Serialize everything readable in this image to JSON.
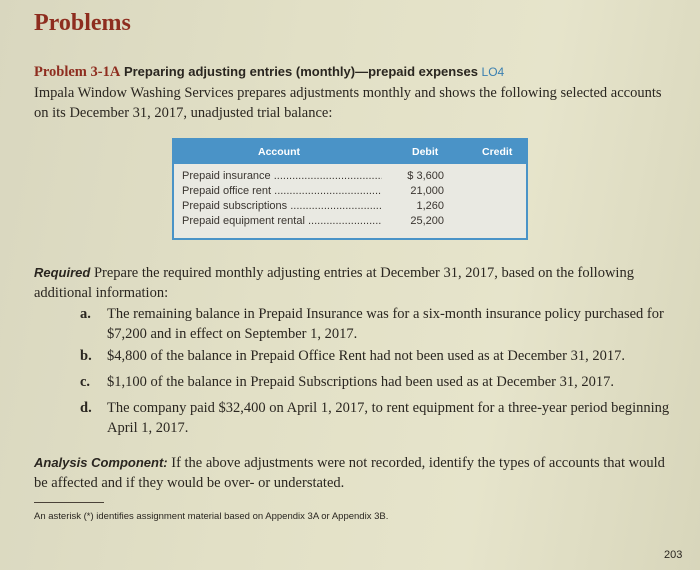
{
  "section_title": "Problems",
  "problem": {
    "number": "Problem 3-1A",
    "title": "Preparing adjusting entries (monthly)—prepaid expenses",
    "lo": "LO4"
  },
  "intro": "Impala Window Washing Services prepares adjustments monthly and shows the following selected accounts on its December 31, 2017, unadjusted trial balance:",
  "table": {
    "headers": {
      "account": "Account",
      "debit": "Debit",
      "credit": "Credit"
    },
    "rows": [
      {
        "account": "Prepaid insurance",
        "debit": "$ 3,600"
      },
      {
        "account": "Prepaid office rent",
        "debit": "21,000"
      },
      {
        "account": "Prepaid subscriptions",
        "debit": "1,260"
      },
      {
        "account": "Prepaid equipment rental",
        "debit": "25,200"
      }
    ]
  },
  "required": {
    "label": "Required",
    "text": "Prepare the required monthly adjusting entries at December 31, 2017, based on the following additional information:"
  },
  "items": [
    {
      "label": "a.",
      "text": "The remaining balance in Prepaid Insurance was for a six-month insurance policy purchased for $7,200 and in effect on September 1, 2017."
    },
    {
      "label": "b.",
      "text": "$4,800 of the balance in Prepaid Office Rent had not been used as at December 31, 2017."
    },
    {
      "label": "c.",
      "text": "$1,100 of the balance in Prepaid Subscriptions had been used as at December 31, 2017."
    },
    {
      "label": "d.",
      "text": "The company paid $32,400 on April 1, 2017, to rent equipment for a three-year period beginning April 1, 2017."
    }
  ],
  "analysis": {
    "label": "Analysis Component:",
    "text": "If the above adjustments were not recorded, identify the types of accounts that would be affected and if they would be over- or understated."
  },
  "footnote": "An asterisk (*) identifies assignment material based on Appendix 3A or Appendix 3B.",
  "page_number": "203",
  "colors": {
    "title": "#8e2d1f",
    "table_header": "#4a93c7",
    "page_bg": "#e2e0c6"
  }
}
